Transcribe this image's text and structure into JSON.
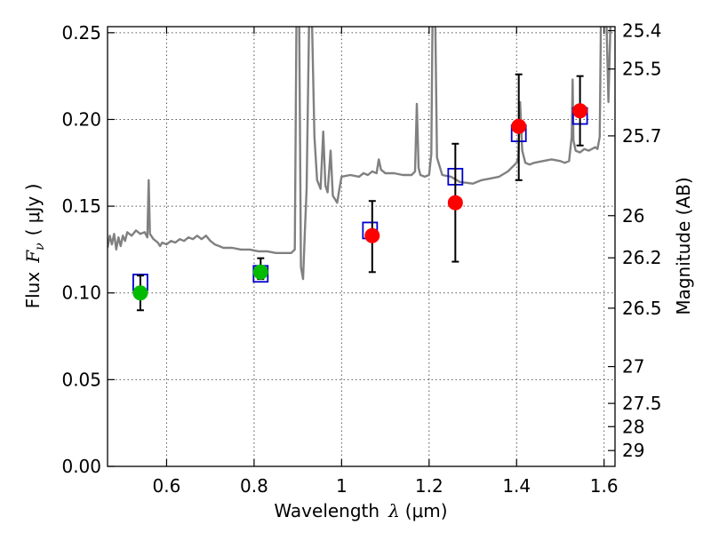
{
  "chart_data": {
    "type": "scatter",
    "title": "",
    "xlabel_text": "Wavelength",
    "xlabel_symbol": "λ",
    "xlabel_unit": "(μm)",
    "ylabel_text": "Flux",
    "ylabel_symbol": "F",
    "ylabel_subscript": "ν",
    "ylabel_unit": "( μJy )",
    "y2label": "Magnitude (AB)",
    "xlim": [
      0.465,
      1.625
    ],
    "ylim": [
      0.0,
      0.2535
    ],
    "grid": true,
    "x_ticks": [
      {
        "value": 0.6,
        "label": "0.6"
      },
      {
        "value": 0.8,
        "label": "0.8"
      },
      {
        "value": 1.0,
        "label": "1"
      },
      {
        "value": 1.2,
        "label": "1.2"
      },
      {
        "value": 1.4,
        "label": "1.4"
      },
      {
        "value": 1.6,
        "label": "1.6"
      }
    ],
    "y_ticks": [
      {
        "value": 0.0,
        "label": "0.00"
      },
      {
        "value": 0.05,
        "label": "0.05"
      },
      {
        "value": 0.1,
        "label": "0.10"
      },
      {
        "value": 0.15,
        "label": "0.15"
      },
      {
        "value": 0.2,
        "label": "0.20"
      },
      {
        "value": 0.25,
        "label": "0.25"
      }
    ],
    "mag_ticks": [
      {
        "mag": 25.4,
        "label": "25.4"
      },
      {
        "mag": 25.5,
        "label": "25.5"
      },
      {
        "mag": 25.7,
        "label": "25.7"
      },
      {
        "mag": 26.0,
        "label": "26"
      },
      {
        "mag": 26.2,
        "label": "26.2"
      },
      {
        "mag": 26.5,
        "label": "26.5"
      },
      {
        "mag": 27.0,
        "label": "27"
      },
      {
        "mag": 27.5,
        "label": "27.5"
      },
      {
        "mag": 28.0,
        "label": "28"
      },
      {
        "mag": 29.0,
        "label": "29"
      }
    ],
    "series": [
      {
        "name": "model_spectrum",
        "style": "line",
        "color": "#808080",
        "points": [
          [
            0.465,
            0.126
          ],
          [
            0.47,
            0.133
          ],
          [
            0.475,
            0.128
          ],
          [
            0.48,
            0.134
          ],
          [
            0.485,
            0.125
          ],
          [
            0.49,
            0.132
          ],
          [
            0.495,
            0.127
          ],
          [
            0.5,
            0.133
          ],
          [
            0.505,
            0.13
          ],
          [
            0.51,
            0.135
          ],
          [
            0.52,
            0.133
          ],
          [
            0.53,
            0.136
          ],
          [
            0.54,
            0.134
          ],
          [
            0.55,
            0.135
          ],
          [
            0.556,
            0.132
          ],
          [
            0.559,
            0.165
          ],
          [
            0.562,
            0.134
          ],
          [
            0.57,
            0.131
          ],
          [
            0.58,
            0.129
          ],
          [
            0.585,
            0.127
          ],
          [
            0.59,
            0.129
          ],
          [
            0.6,
            0.128
          ],
          [
            0.61,
            0.13
          ],
          [
            0.62,
            0.129
          ],
          [
            0.63,
            0.131
          ],
          [
            0.64,
            0.13
          ],
          [
            0.65,
            0.132
          ],
          [
            0.66,
            0.131
          ],
          [
            0.67,
            0.133
          ],
          [
            0.68,
            0.131
          ],
          [
            0.69,
            0.133
          ],
          [
            0.7,
            0.13
          ],
          [
            0.71,
            0.128
          ],
          [
            0.72,
            0.127
          ],
          [
            0.73,
            0.126
          ],
          [
            0.75,
            0.126
          ],
          [
            0.77,
            0.125
          ],
          [
            0.79,
            0.125
          ],
          [
            0.81,
            0.124
          ],
          [
            0.83,
            0.124
          ],
          [
            0.85,
            0.123
          ],
          [
            0.87,
            0.123
          ],
          [
            0.885,
            0.123
          ],
          [
            0.893,
            0.125
          ],
          [
            0.897,
            0.26
          ],
          [
            0.903,
            0.26
          ],
          [
            0.907,
            0.115
          ],
          [
            0.912,
            0.108
          ],
          [
            0.916,
            0.135
          ],
          [
            0.92,
            0.16
          ],
          [
            0.926,
            0.26
          ],
          [
            0.932,
            0.26
          ],
          [
            0.938,
            0.19
          ],
          [
            0.944,
            0.165
          ],
          [
            0.952,
            0.16
          ],
          [
            0.958,
            0.193
          ],
          [
            0.963,
            0.162
          ],
          [
            0.968,
            0.158
          ],
          [
            0.975,
            0.182
          ],
          [
            0.98,
            0.156
          ],
          [
            0.99,
            0.152
          ],
          [
            0.995,
            0.16
          ],
          [
            1.0,
            0.167
          ],
          [
            1.02,
            0.168
          ],
          [
            1.04,
            0.167
          ],
          [
            1.05,
            0.169
          ],
          [
            1.06,
            0.168
          ],
          [
            1.07,
            0.17
          ],
          [
            1.08,
            0.169
          ],
          [
            1.085,
            0.177
          ],
          [
            1.09,
            0.171
          ],
          [
            1.1,
            0.169
          ],
          [
            1.12,
            0.169
          ],
          [
            1.14,
            0.168
          ],
          [
            1.16,
            0.168
          ],
          [
            1.168,
            0.17
          ],
          [
            1.172,
            0.209
          ],
          [
            1.176,
            0.172
          ],
          [
            1.18,
            0.168
          ],
          [
            1.19,
            0.167
          ],
          [
            1.2,
            0.168
          ],
          [
            1.205,
            0.18
          ],
          [
            1.208,
            0.26
          ],
          [
            1.214,
            0.26
          ],
          [
            1.218,
            0.178
          ],
          [
            1.23,
            0.168
          ],
          [
            1.25,
            0.167
          ],
          [
            1.27,
            0.164
          ],
          [
            1.3,
            0.163
          ],
          [
            1.32,
            0.165
          ],
          [
            1.34,
            0.166
          ],
          [
            1.36,
            0.167
          ],
          [
            1.38,
            0.17
          ],
          [
            1.4,
            0.175
          ],
          [
            1.404,
            0.178
          ],
          [
            1.408,
            0.21
          ],
          [
            1.413,
            0.182
          ],
          [
            1.42,
            0.175
          ],
          [
            1.43,
            0.174
          ],
          [
            1.44,
            0.175
          ],
          [
            1.46,
            0.176
          ],
          [
            1.48,
            0.177
          ],
          [
            1.5,
            0.176
          ],
          [
            1.51,
            0.175
          ],
          [
            1.52,
            0.176
          ],
          [
            1.526,
            0.19
          ],
          [
            1.528,
            0.223
          ],
          [
            1.53,
            0.188
          ],
          [
            1.535,
            0.182
          ],
          [
            1.545,
            0.181
          ],
          [
            1.555,
            0.183
          ],
          [
            1.565,
            0.182
          ],
          [
            1.58,
            0.184
          ],
          [
            1.585,
            0.183
          ],
          [
            1.59,
            0.19
          ],
          [
            1.593,
            0.26
          ],
          [
            1.605,
            0.26
          ],
          [
            1.61,
            0.21
          ],
          [
            1.615,
            0.26
          ],
          [
            1.625,
            0.26
          ]
        ]
      },
      {
        "name": "model_band_flux",
        "style": "open-square",
        "color": "#0000cc",
        "points": [
          [
            0.54,
            0.106
          ],
          [
            0.815,
            0.111
          ],
          [
            1.065,
            0.136
          ],
          [
            1.26,
            0.167
          ],
          [
            1.405,
            0.192
          ],
          [
            1.545,
            0.202
          ]
        ]
      },
      {
        "name": "observed_flux_green",
        "style": "filled-circle",
        "color": "#00bb00",
        "points": [
          [
            0.54,
            0.1,
            0.09,
            0.11
          ],
          [
            0.815,
            0.112,
            0.108,
            0.12
          ]
        ]
      },
      {
        "name": "observed_flux_red",
        "style": "filled-circle",
        "color": "#ff0000",
        "points": [
          [
            1.07,
            0.133,
            0.112,
            0.153
          ],
          [
            1.26,
            0.152,
            0.118,
            0.186
          ],
          [
            1.405,
            0.196,
            0.165,
            0.226
          ],
          [
            1.545,
            0.205,
            0.185,
            0.225
          ]
        ]
      }
    ]
  }
}
